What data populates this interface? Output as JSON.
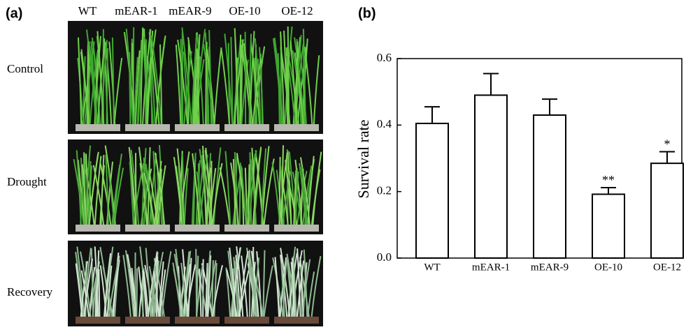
{
  "photo_panel": {
    "label": "(a)",
    "columns": [
      "WT",
      "mEAR-1",
      "mEAR-9",
      "OE-10",
      "OE-12"
    ],
    "rows": [
      "Control",
      "Drought",
      "Recovery"
    ]
  },
  "chart_data": {
    "type": "bar",
    "label": "(b)",
    "y_label": "Survival rate",
    "categories": [
      "WT",
      "mEAR-1",
      "mEAR-9",
      "OE-10",
      "OE-12"
    ],
    "values": [
      0.405,
      0.49,
      0.43,
      0.192,
      0.285
    ],
    "errors": [
      0.05,
      0.065,
      0.048,
      0.02,
      0.035
    ],
    "significance": [
      null,
      null,
      null,
      "**",
      "*"
    ],
    "color": "#ffffff",
    "ylim": [
      0,
      0.6
    ],
    "yticks": [
      {
        "value": 0,
        "label": "0.0"
      },
      0.2,
      0.4,
      0.6
    ]
  }
}
